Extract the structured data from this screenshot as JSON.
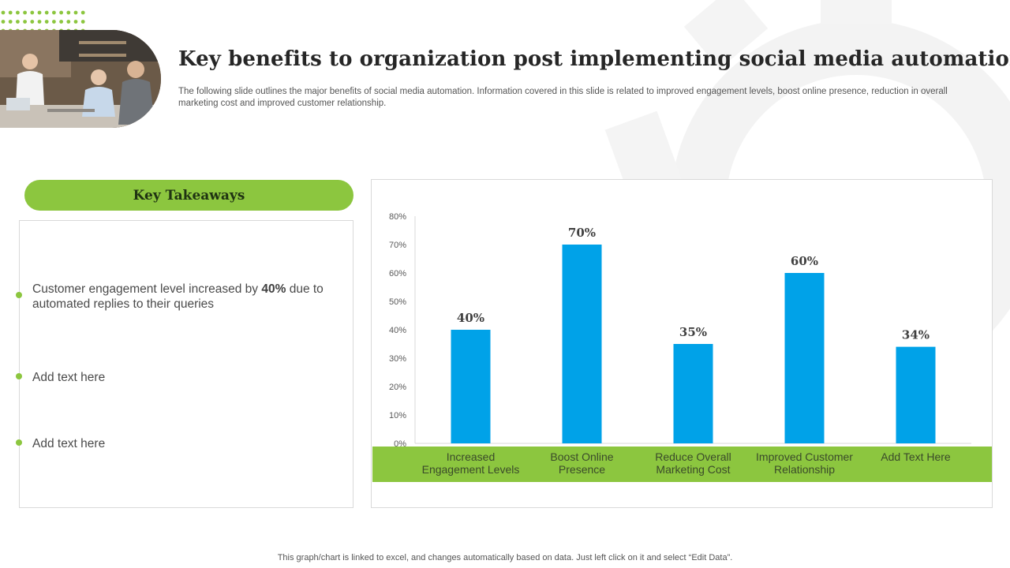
{
  "slide": {
    "title": "Key benefits to organization post implementing social media automation",
    "subtitle": "The following slide outlines the major benefits of social media automation. Information covered in this slide is related to improved engagement levels, boost online presence, reduction in overall marketing cost and improved customer relationship.",
    "footnote": "This graph/chart is linked to excel,  and changes automatically based on data. Just left click on it and select “Edit Data”."
  },
  "takeaways": {
    "header": "Key Takeaways",
    "item1_before": "Customer engagement level increased by ",
    "item1_bold": "40%",
    "item1_after": " due to automated replies to their queries",
    "item2": "Add text here",
    "item3": "Add text here"
  },
  "colors": {
    "accent_green": "#8cc63f",
    "bar_blue": "#00a2e8"
  },
  "chart_data": {
    "type": "bar",
    "categories": [
      [
        "Increased",
        "Engagement Levels"
      ],
      [
        "Boost Online",
        "Presence"
      ],
      [
        "Reduce Overall",
        "Marketing Cost"
      ],
      [
        "Improved Customer",
        "Relationship"
      ],
      [
        "Add Text Here"
      ]
    ],
    "values": [
      40,
      70,
      35,
      60,
      34
    ],
    "data_labels": [
      "40%",
      "70%",
      "35%",
      "60%",
      "34%"
    ],
    "y_ticks": [
      "0%",
      "10%",
      "20%",
      "30%",
      "40%",
      "50%",
      "60%",
      "70%",
      "80%"
    ],
    "ylim": [
      0,
      80
    ],
    "grid": false,
    "legend": "none"
  }
}
